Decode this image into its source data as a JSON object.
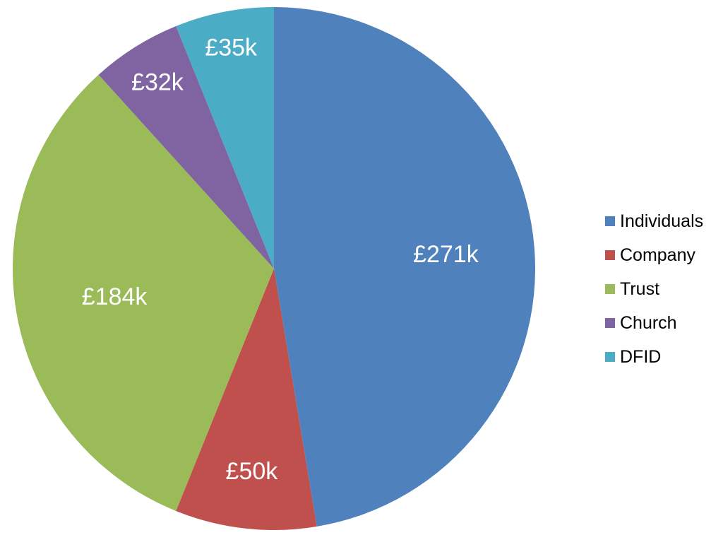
{
  "chart_data": {
    "type": "pie",
    "title": "",
    "categories": [
      "Individuals",
      "Company",
      "Trust",
      "Church",
      "DFID"
    ],
    "values": [
      271,
      50,
      184,
      32,
      35
    ],
    "value_labels": [
      "£271k",
      "£50k",
      "£184k",
      "£32k",
      "£35k"
    ],
    "value_unit": "£k",
    "start": "12 o'clock",
    "direction": "clockwise",
    "legend_position": "right",
    "colors": [
      "#4F81BD",
      "#C0504D",
      "#9BBB59",
      "#8064A2",
      "#4BACC6"
    ]
  }
}
